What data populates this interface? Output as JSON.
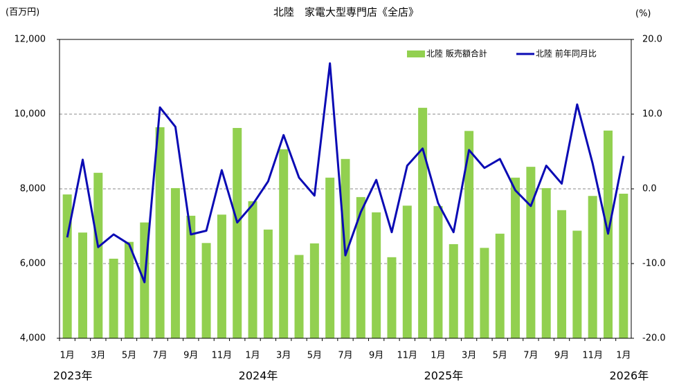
{
  "chart_data": {
    "type": "bar_line",
    "title": "北陸　家電大型専門店《全店》",
    "y_unit": "(百万円)",
    "y2_unit": "(%)",
    "categories": [
      "1月",
      null,
      "3月",
      null,
      "5月",
      null,
      "7月",
      null,
      "9月",
      null,
      "11月",
      null,
      "1月",
      null,
      "3月",
      null,
      "5月",
      null,
      "7月",
      null,
      "9月",
      null,
      "11月",
      null,
      "1月",
      null,
      "3月",
      null,
      "5月",
      null,
      "7月",
      null,
      "9月",
      null,
      "11月",
      null,
      "1月"
    ],
    "year_labels": [
      "2023年",
      "2024年",
      "2025年",
      "2026年"
    ],
    "series": [
      {
        "name": "北陸 販売額合計",
        "type": "bar",
        "color": "#92d050",
        "values": [
          7850,
          6830,
          8430,
          6130,
          6580,
          7100,
          9650,
          8020,
          7280,
          6550,
          7310,
          9630,
          7670,
          6910,
          9060,
          6230,
          6540,
          8300,
          8800,
          7780,
          7370,
          6170,
          7550,
          10170,
          7540,
          6520,
          9550,
          6420,
          6800,
          8300,
          8590,
          8020,
          7430,
          6880,
          7810,
          9560,
          7870
        ]
      },
      {
        "name": "北陸 前年同月比",
        "type": "line",
        "axis": "y2",
        "color": "#0a0ab4",
        "values": [
          -6.5,
          3.9,
          -7.8,
          -6.1,
          -7.4,
          -12.5,
          10.9,
          8.3,
          -6.1,
          -5.6,
          2.5,
          -4.5,
          -2.1,
          1.0,
          7.2,
          1.5,
          -0.9,
          16.8,
          -8.9,
          -3.1,
          1.2,
          -5.8,
          3.1,
          5.4,
          -1.9,
          -5.8,
          5.2,
          2.8,
          4.0,
          -0.2,
          -2.3,
          3.1,
          0.7,
          11.3,
          3.4,
          -6.0,
          4.4
        ]
      }
    ],
    "ylim": [
      4000,
      12000
    ],
    "yticks": [
      {
        "value": 4000,
        "label": "4,000"
      },
      {
        "value": 6000,
        "label": "6,000"
      },
      {
        "value": 8000,
        "label": "8,000"
      },
      {
        "value": 10000,
        "label": "10,000"
      },
      {
        "value": 12000,
        "label": "12,000"
      }
    ],
    "y2lim": [
      -20,
      20
    ],
    "y2ticks": [
      {
        "value": -20,
        "label": "-20.0"
      },
      {
        "value": -10,
        "label": "-10.0"
      },
      {
        "value": 0,
        "label": "0.0"
      },
      {
        "value": 10,
        "label": "10.0"
      },
      {
        "value": 20,
        "label": "20.0"
      }
    ],
    "grid": true,
    "legend": "top-right"
  }
}
